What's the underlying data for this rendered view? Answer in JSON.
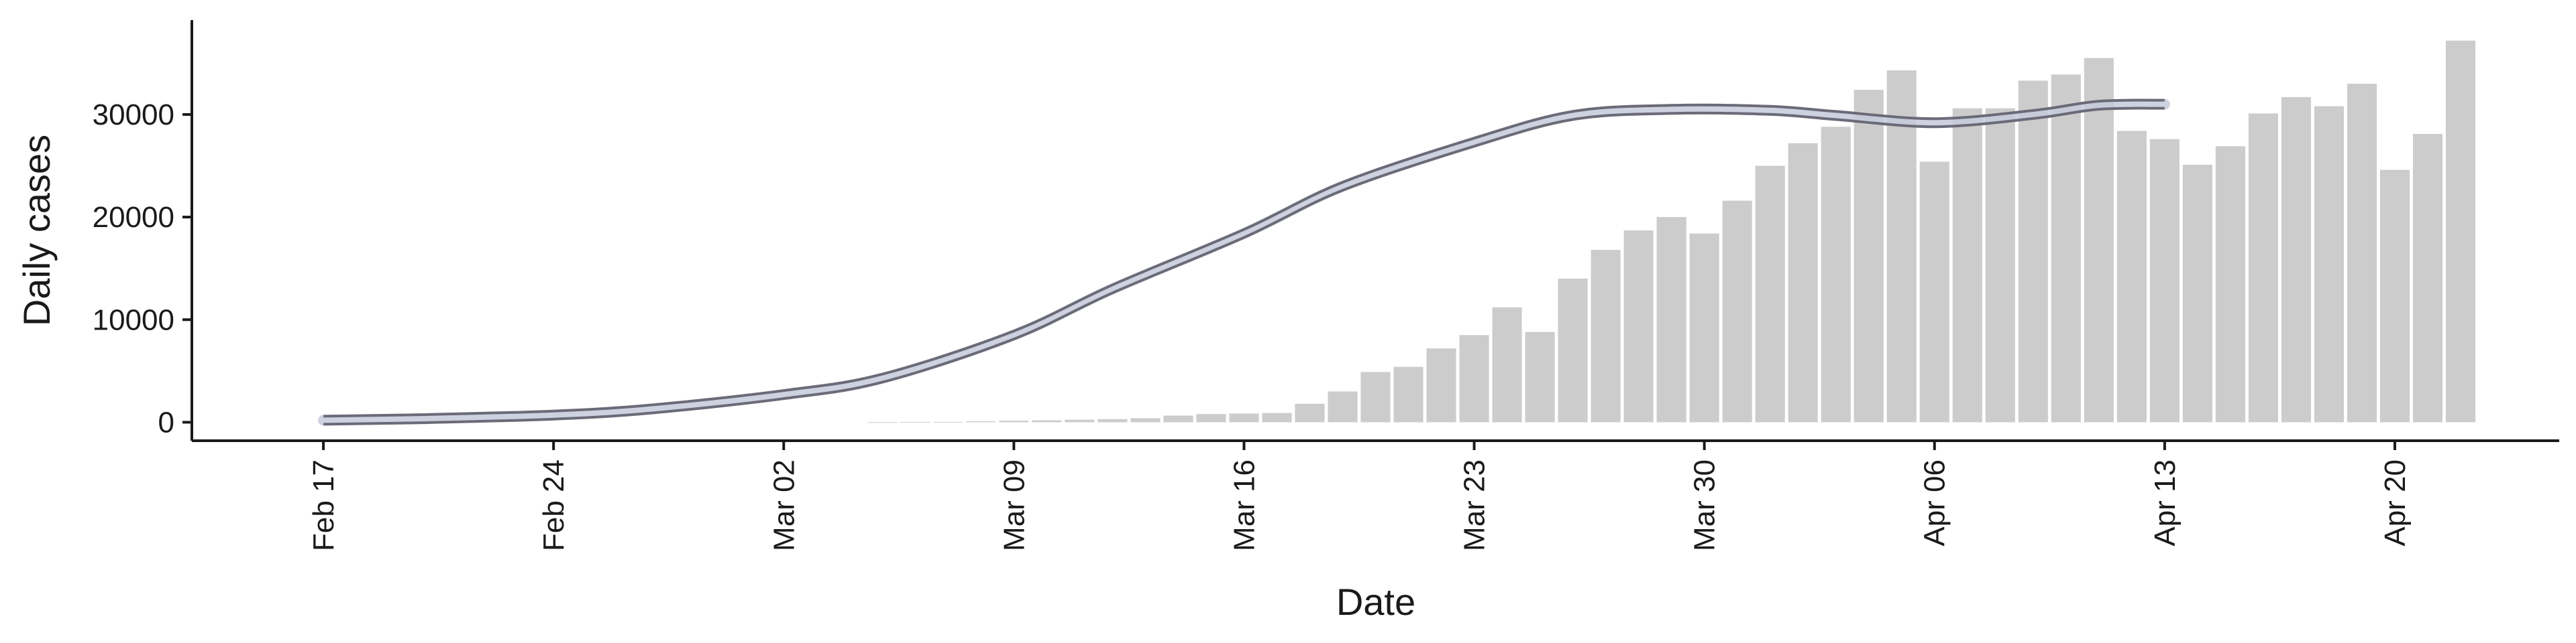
{
  "chart_data": {
    "type": "bar",
    "title": "",
    "xlabel": "Date",
    "ylabel": "Daily cases",
    "grid": false,
    "legend": "none",
    "xlim": [
      "2020-02-13",
      "2020-04-25"
    ],
    "ylim": [
      -1800,
      39200
    ],
    "x_ticks": [
      {
        "date": "2020-02-17",
        "label": "Feb 17"
      },
      {
        "date": "2020-02-24",
        "label": "Feb 24"
      },
      {
        "date": "2020-03-02",
        "label": "Mar 02"
      },
      {
        "date": "2020-03-09",
        "label": "Mar 09"
      },
      {
        "date": "2020-03-16",
        "label": "Mar 16"
      },
      {
        "date": "2020-03-23",
        "label": "Mar 23"
      },
      {
        "date": "2020-03-30",
        "label": "Mar 30"
      },
      {
        "date": "2020-04-06",
        "label": "Apr 06"
      },
      {
        "date": "2020-04-13",
        "label": "Apr 13"
      },
      {
        "date": "2020-04-20",
        "label": "Apr 20"
      }
    ],
    "y_ticks": [
      0,
      10000,
      20000,
      30000
    ],
    "bar_color": "#cccccc",
    "curve_color": "#6b6b78",
    "band_color": "#c5cadb",
    "bars": {
      "x": [
        "2020-03-05",
        "2020-03-06",
        "2020-03-07",
        "2020-03-08",
        "2020-03-09",
        "2020-03-10",
        "2020-03-11",
        "2020-03-12",
        "2020-03-13",
        "2020-03-14",
        "2020-03-15",
        "2020-03-16",
        "2020-03-17",
        "2020-03-18",
        "2020-03-19",
        "2020-03-20",
        "2020-03-21",
        "2020-03-22",
        "2020-03-23",
        "2020-03-24",
        "2020-03-25",
        "2020-03-26",
        "2020-03-27",
        "2020-03-28",
        "2020-03-29",
        "2020-03-30",
        "2020-03-31",
        "2020-04-01",
        "2020-04-02",
        "2020-04-03",
        "2020-04-04",
        "2020-04-05",
        "2020-04-06",
        "2020-04-07",
        "2020-04-08",
        "2020-04-09",
        "2020-04-10",
        "2020-04-11",
        "2020-04-12",
        "2020-04-13",
        "2020-04-14",
        "2020-04-15",
        "2020-04-16",
        "2020-04-17",
        "2020-04-18",
        "2020-04-19",
        "2020-04-20",
        "2020-04-21",
        "2020-04-22"
      ],
      "values": [
        10,
        20,
        40,
        90,
        150,
        190,
        250,
        300,
        400,
        650,
        800,
        850,
        900,
        1800,
        3000,
        4900,
        5400,
        7200,
        8500,
        11200,
        8800,
        14000,
        16800,
        18700,
        20000,
        18400,
        21600,
        25000,
        27200,
        28800,
        32400,
        34300,
        25400,
        30600,
        30600,
        33300,
        33900,
        35500,
        28400,
        27600,
        25100,
        26900,
        30100,
        31700,
        30800,
        33000,
        24600,
        28100,
        37200
      ]
    },
    "curve": {
      "x": [
        "2020-02-17",
        "2020-02-20",
        "2020-02-24",
        "2020-02-27",
        "2020-03-02",
        "2020-03-05",
        "2020-03-09",
        "2020-03-12",
        "2020-03-16",
        "2020-03-19",
        "2020-03-23",
        "2020-03-26",
        "2020-03-29",
        "2020-04-01",
        "2020-04-03",
        "2020-04-06",
        "2020-04-09",
        "2020-04-11",
        "2020-04-13"
      ],
      "values": [
        200,
        350,
        700,
        1300,
        2700,
        4300,
        8500,
        13000,
        18400,
        23000,
        27300,
        29900,
        30500,
        30400,
        29900,
        29200,
        30000,
        30900,
        31000
      ]
    }
  }
}
